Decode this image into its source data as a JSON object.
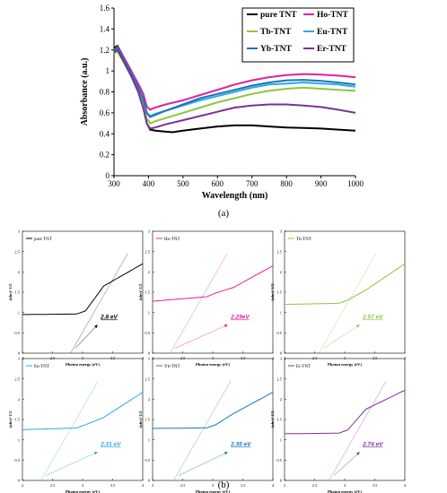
{
  "chart_data": [
    {
      "type": "line",
      "panel": "a",
      "caption": "(a)",
      "xlabel": "Wavelength (nm)",
      "ylabel": "Absorbance (a.u.)",
      "xlim": [
        300,
        1000
      ],
      "ylim": [
        0,
        1.6
      ],
      "xticks": [
        "300",
        "400",
        "500",
        "600",
        "700",
        "800",
        "900",
        "1000"
      ],
      "yticks": [
        "0",
        "0.2",
        "0.4",
        "0.6",
        "0.8",
        "1",
        "1.2",
        "1.4",
        "1.6"
      ],
      "legend_position": "top-right",
      "legend": [
        "pure TNT",
        "Ho-TNT",
        "Tb-TNT",
        "Eu-TNT",
        "Yb-TNT",
        "Er-TNT"
      ],
      "series": [
        {
          "name": "pure TNT",
          "color": "#000000",
          "x": [
            300,
            310,
            330,
            350,
            370,
            385,
            395,
            405,
            420,
            450,
            470,
            500,
            550,
            600,
            650,
            700,
            750,
            800,
            850,
            900,
            950,
            1000
          ],
          "y": [
            1.22,
            1.24,
            1.12,
            1.0,
            0.85,
            0.7,
            0.5,
            0.44,
            0.43,
            0.42,
            0.415,
            0.43,
            0.45,
            0.47,
            0.48,
            0.48,
            0.47,
            0.46,
            0.455,
            0.45,
            0.44,
            0.43
          ]
        },
        {
          "name": "Ho-TNT",
          "color": "#e0219c",
          "x": [
            300,
            310,
            330,
            350,
            370,
            385,
            395,
            405,
            420,
            450,
            500,
            550,
            600,
            650,
            700,
            750,
            800,
            850,
            900,
            950,
            1000
          ],
          "y": [
            1.2,
            1.23,
            1.12,
            1.0,
            0.88,
            0.78,
            0.66,
            0.63,
            0.65,
            0.68,
            0.72,
            0.77,
            0.82,
            0.87,
            0.91,
            0.94,
            0.96,
            0.97,
            0.965,
            0.955,
            0.94
          ]
        },
        {
          "name": "Tb-TNT",
          "color": "#8cc63f",
          "x": [
            300,
            310,
            330,
            350,
            370,
            385,
            395,
            405,
            420,
            450,
            500,
            550,
            600,
            650,
            700,
            750,
            800,
            850,
            900,
            950,
            1000
          ],
          "y": [
            1.16,
            1.19,
            1.07,
            0.95,
            0.82,
            0.68,
            0.55,
            0.5,
            0.52,
            0.55,
            0.6,
            0.65,
            0.7,
            0.74,
            0.78,
            0.81,
            0.83,
            0.84,
            0.83,
            0.82,
            0.81
          ]
        },
        {
          "name": "Eu-TNT",
          "color": "#29abe2",
          "x": [
            300,
            310,
            330,
            350,
            370,
            385,
            395,
            405,
            420,
            450,
            500,
            550,
            600,
            650,
            700,
            750,
            800,
            850,
            900,
            950,
            1000
          ],
          "y": [
            1.18,
            1.21,
            1.09,
            0.97,
            0.84,
            0.72,
            0.6,
            0.57,
            0.59,
            0.62,
            0.67,
            0.72,
            0.76,
            0.8,
            0.84,
            0.87,
            0.88,
            0.89,
            0.88,
            0.87,
            0.85
          ]
        },
        {
          "name": "Yb-TNT",
          "color": "#1b75bc",
          "x": [
            300,
            310,
            330,
            350,
            370,
            385,
            395,
            405,
            420,
            450,
            500,
            550,
            600,
            650,
            700,
            750,
            800,
            850,
            900,
            950,
            1000
          ],
          "y": [
            1.2,
            1.22,
            1.1,
            0.98,
            0.85,
            0.73,
            0.6,
            0.56,
            0.58,
            0.62,
            0.68,
            0.74,
            0.78,
            0.82,
            0.86,
            0.89,
            0.91,
            0.915,
            0.905,
            0.89,
            0.87
          ]
        },
        {
          "name": "Er-TNT",
          "color": "#7b3294",
          "x": [
            300,
            310,
            330,
            350,
            370,
            385,
            395,
            405,
            420,
            450,
            500,
            550,
            600,
            650,
            700,
            750,
            800,
            850,
            900,
            950,
            1000
          ],
          "y": [
            1.18,
            1.2,
            1.08,
            0.95,
            0.8,
            0.64,
            0.5,
            0.45,
            0.46,
            0.49,
            0.53,
            0.57,
            0.61,
            0.65,
            0.67,
            0.68,
            0.68,
            0.67,
            0.655,
            0.63,
            0.6
          ]
        }
      ]
    },
    {
      "type": "line",
      "panel": "b",
      "caption": "(b)",
      "xlabel": "Photon energy  (eV)",
      "ylabel": "(αhv)^1/2",
      "xlim": [
        2,
        4
      ],
      "ylim": [
        0,
        3
      ],
      "xticks": [
        "2",
        "2.5",
        "3",
        "3.5",
        "4"
      ],
      "yticks": [
        "0",
        "0.5",
        "1",
        "1.5",
        "2",
        "2.5",
        "3"
      ],
      "subplots": [
        {
          "name": "pure TNT",
          "color": "#000000",
          "bandgap": "2.8 eV",
          "bg_color": "#000000",
          "edge": 2.8,
          "y0": 0.95,
          "jump": 1.65,
          "end": 2.2,
          "slope": 0.01
        },
        {
          "name": "Ho-TNT",
          "color": "#e0219c",
          "bandgap": "2.29eV",
          "bg_color": "#e0219c",
          "edge": 2.29,
          "y0": 1.28,
          "jump": 1.62,
          "end": 2.15,
          "slope": 0.08
        },
        {
          "name": "Tb-TNT",
          "color": "#8cc63f",
          "bandgap": "2.57 eV",
          "bg_color": "#8cc63f",
          "edge": 2.57,
          "y0": 1.2,
          "jump": 1.55,
          "end": 2.2,
          "slope": 0.02
        },
        {
          "name": "Eu-TNT",
          "color": "#29abe2",
          "bandgap": "2.31 eV",
          "bg_color": "#29abe2",
          "edge": 2.31,
          "y0": 1.25,
          "jump": 1.55,
          "end": 2.17,
          "slope": 0.03
        },
        {
          "name": "Yb-TNT",
          "color": "#1b75bc",
          "bandgap": "2.35 eV",
          "bg_color": "#1b75bc",
          "edge": 2.35,
          "y0": 1.28,
          "jump": 1.65,
          "end": 2.17,
          "slope": 0.01
        },
        {
          "name": "Er-TNT",
          "color": "#7b3294",
          "bandgap": "2.74 eV",
          "bg_color": "#7b3294",
          "edge": 2.74,
          "y0": 1.15,
          "jump": 1.75,
          "end": 2.22,
          "slope": 0.01
        }
      ]
    }
  ]
}
